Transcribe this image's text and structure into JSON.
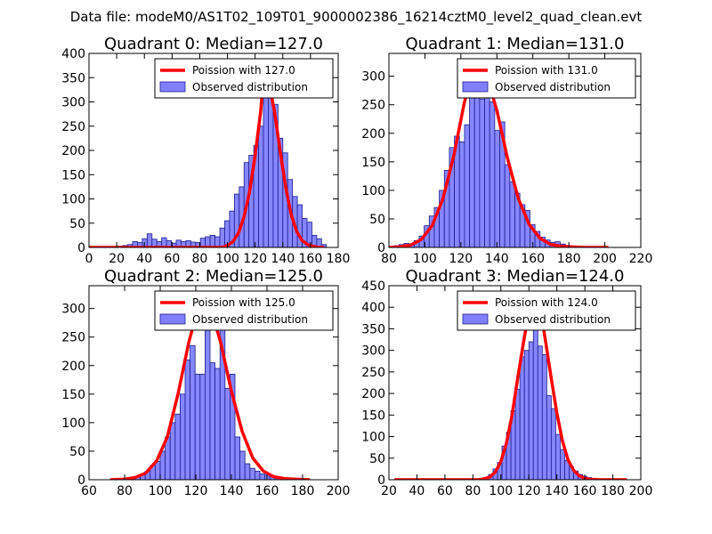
{
  "suptitle": "Data file: modeM0/AS1T02_109T01_9000002386_16214cztM0_level2_quad_clean.evt",
  "colors": {
    "bar_fill": "#8080ff",
    "bar_edge": "#1f1f8f",
    "curve": "#ff0000",
    "axes": "#000000",
    "background": "#ffffff"
  },
  "chart_data": [
    {
      "type": "bar",
      "title": "Quadrant 0: Median=127.0",
      "median": 127.0,
      "xlim": [
        0,
        180
      ],
      "ylim": [
        0,
        400
      ],
      "xticks": [
        0,
        20,
        40,
        60,
        80,
        100,
        120,
        140,
        160,
        180
      ],
      "yticks": [
        0,
        50,
        100,
        150,
        200,
        250,
        300,
        350,
        400
      ],
      "legend": [
        "Poission with 127.0",
        "Observed distribution"
      ],
      "legend_loc": "top-right",
      "bin_width": 3.5,
      "bin_starts": [
        0,
        3.5,
        7,
        10.5,
        14,
        17.5,
        21,
        24.5,
        28,
        31.5,
        35,
        38.5,
        42,
        45.5,
        49,
        52.5,
        56,
        59.5,
        63,
        66.5,
        70,
        73.5,
        77,
        80.5,
        84,
        87.5,
        91,
        94.5,
        98,
        101.5,
        105,
        108.5,
        112,
        115.5,
        119,
        122.5,
        126,
        129.5,
        133,
        136.5,
        140,
        143.5,
        147,
        150.5,
        154,
        157.5,
        161,
        164.5,
        168
      ],
      "counts": [
        2,
        0,
        1,
        2,
        2,
        1,
        3,
        4,
        6,
        12,
        10,
        18,
        28,
        17,
        12,
        20,
        14,
        9,
        15,
        12,
        14,
        11,
        10,
        19,
        22,
        25,
        22,
        40,
        55,
        75,
        110,
        125,
        175,
        190,
        210,
        250,
        350,
        310,
        295,
        225,
        195,
        140,
        105,
        88,
        60,
        52,
        25,
        18,
        6
      ],
      "curve": {
        "label": "Poission with 127.0",
        "x": [
          0,
          96,
          100,
          104,
          108,
          112,
          116,
          120,
          124,
          127,
          130,
          134,
          138,
          142,
          146,
          150,
          154,
          158,
          162,
          166,
          170
        ],
        "y": [
          0,
          0,
          4,
          12,
          30,
          63,
          115,
          190,
          280,
          384,
          340,
          280,
          200,
          125,
          68,
          33,
          14,
          6,
          2,
          0,
          0
        ]
      }
    },
    {
      "type": "bar",
      "title": "Quadrant 1: Median=131.0",
      "median": 131.0,
      "xlim": [
        80,
        220
      ],
      "ylim": [
        0,
        340
      ],
      "xticks": [
        80,
        100,
        120,
        140,
        160,
        180,
        200,
        220
      ],
      "yticks": [
        0,
        50,
        100,
        150,
        200,
        250,
        300
      ],
      "legend": [
        "Poission with 131.0",
        "Observed distribution"
      ],
      "legend_loc": "top-right",
      "bin_width": 2.8,
      "bin_starts": [
        80,
        82.8,
        85.6,
        88.4,
        91.2,
        94,
        96.8,
        99.6,
        102.4,
        105.2,
        108,
        110.8,
        113.6,
        116.4,
        119.2,
        122,
        124.8,
        127.6,
        130.4,
        133.2,
        136,
        138.8,
        141.6,
        144.4,
        147.2,
        150,
        152.8,
        155.6,
        158.4,
        161.2,
        164,
        166.8,
        169.6,
        172.4,
        175.2,
        178,
        180.8
      ],
      "counts": [
        1,
        3,
        5,
        7,
        6,
        12,
        20,
        38,
        55,
        70,
        100,
        135,
        175,
        195,
        185,
        215,
        290,
        310,
        260,
        300,
        255,
        205,
        220,
        145,
        115,
        95,
        75,
        65,
        40,
        28,
        18,
        13,
        9,
        10,
        6,
        3,
        1
      ],
      "curve": {
        "label": "Poission with 131.0",
        "x": [
          80,
          86,
          92,
          98,
          104,
          110,
          116,
          122,
          128,
          131,
          134,
          140,
          146,
          152,
          158,
          164,
          170,
          176,
          182,
          188,
          194,
          202
        ],
        "y": [
          0,
          1,
          4,
          14,
          38,
          85,
          160,
          255,
          318,
          326,
          305,
          240,
          155,
          85,
          40,
          16,
          5,
          2,
          1,
          0,
          0,
          0
        ]
      }
    },
    {
      "type": "bar",
      "title": "Quadrant 2: Median=125.0",
      "median": 125.0,
      "xlim": [
        60,
        200
      ],
      "ylim": [
        0,
        340
      ],
      "xticks": [
        60,
        80,
        100,
        120,
        140,
        160,
        180,
        200
      ],
      "yticks": [
        0,
        50,
        100,
        150,
        200,
        250,
        300
      ],
      "legend": [
        "Poission with 125.0",
        "Observed distribution"
      ],
      "legend_loc": "top-right",
      "bin_width": 2.8,
      "bin_starts": [
        72,
        74.8,
        77.6,
        80.4,
        83.2,
        86,
        88.8,
        91.6,
        94.4,
        97.2,
        100,
        102.8,
        105.6,
        108.4,
        111.2,
        114,
        116.8,
        119.6,
        122.4,
        125.2,
        128,
        130.8,
        133.6,
        136.4,
        139.2,
        142,
        144.8,
        147.6,
        150.4,
        153.2,
        156,
        158.8,
        161.6,
        164.4,
        167.2,
        170,
        172.8,
        175.6,
        178.4,
        181.2
      ],
      "counts": [
        1,
        0,
        1,
        2,
        3,
        5,
        8,
        15,
        25,
        32,
        50,
        75,
        100,
        115,
        150,
        210,
        235,
        185,
        185,
        330,
        205,
        195,
        290,
        160,
        185,
        75,
        50,
        28,
        20,
        15,
        10,
        8,
        5,
        4,
        3,
        2,
        1,
        1,
        0,
        1
      ],
      "curve": {
        "label": "Poission with 125.0",
        "x": [
          72,
          80,
          86,
          92,
          98,
          104,
          110,
          116,
          122,
          125,
          128,
          134,
          140,
          146,
          152,
          158,
          164,
          170,
          176,
          184
        ],
        "y": [
          0,
          1,
          4,
          12,
          33,
          75,
          150,
          240,
          310,
          326,
          305,
          240,
          155,
          85,
          38,
          15,
          5,
          2,
          1,
          0
        ]
      }
    },
    {
      "type": "bar",
      "title": "Quadrant 3: Median=124.0",
      "median": 124.0,
      "xlim": [
        20,
        200
      ],
      "ylim": [
        0,
        450
      ],
      "xticks": [
        20,
        40,
        60,
        80,
        100,
        120,
        140,
        160,
        180,
        200
      ],
      "yticks": [
        0,
        50,
        100,
        150,
        200,
        250,
        300,
        350,
        400,
        450
      ],
      "legend": [
        "Poission with 124.0",
        "Observed distribution"
      ],
      "legend_loc": "top-right",
      "bin_width": 3.2,
      "bin_starts": [
        24,
        27.2,
        30.4,
        33.6,
        36.8,
        40,
        43.2,
        46.4,
        49.6,
        52.8,
        56,
        59.2,
        62.4,
        65.6,
        68.8,
        72,
        75.2,
        78.4,
        81.6,
        84.8,
        88,
        91.2,
        94.4,
        97.6,
        100.8,
        104,
        107.2,
        110.4,
        113.6,
        116.8,
        120,
        123.2,
        126.4,
        129.6,
        132.8,
        136,
        139.2,
        142.4,
        145.6,
        148.8,
        152,
        155.2,
        158.4,
        161.6,
        164.8,
        168,
        171.2,
        174.4
      ],
      "counts": [
        1,
        0,
        0,
        0,
        1,
        0,
        0,
        1,
        0,
        0,
        1,
        0,
        0,
        1,
        0,
        1,
        1,
        1,
        2,
        3,
        5,
        12,
        25,
        40,
        78,
        110,
        160,
        210,
        285,
        300,
        320,
        425,
        310,
        290,
        195,
        165,
        105,
        70,
        45,
        30,
        20,
        12,
        8,
        5,
        3,
        2,
        1,
        1
      ],
      "curve": {
        "label": "Poission with 124.0",
        "x": [
          24,
          84,
          88,
          92,
          96,
          100,
          104,
          108,
          112,
          116,
          120,
          124,
          128,
          132,
          136,
          140,
          144,
          148,
          152,
          156,
          160,
          164,
          170,
          180,
          190
        ],
        "y": [
          0,
          0,
          2,
          6,
          18,
          42,
          85,
          150,
          235,
          315,
          390,
          428,
          400,
          320,
          235,
          155,
          90,
          46,
          22,
          9,
          3,
          1,
          0,
          0,
          0
        ]
      }
    }
  ]
}
